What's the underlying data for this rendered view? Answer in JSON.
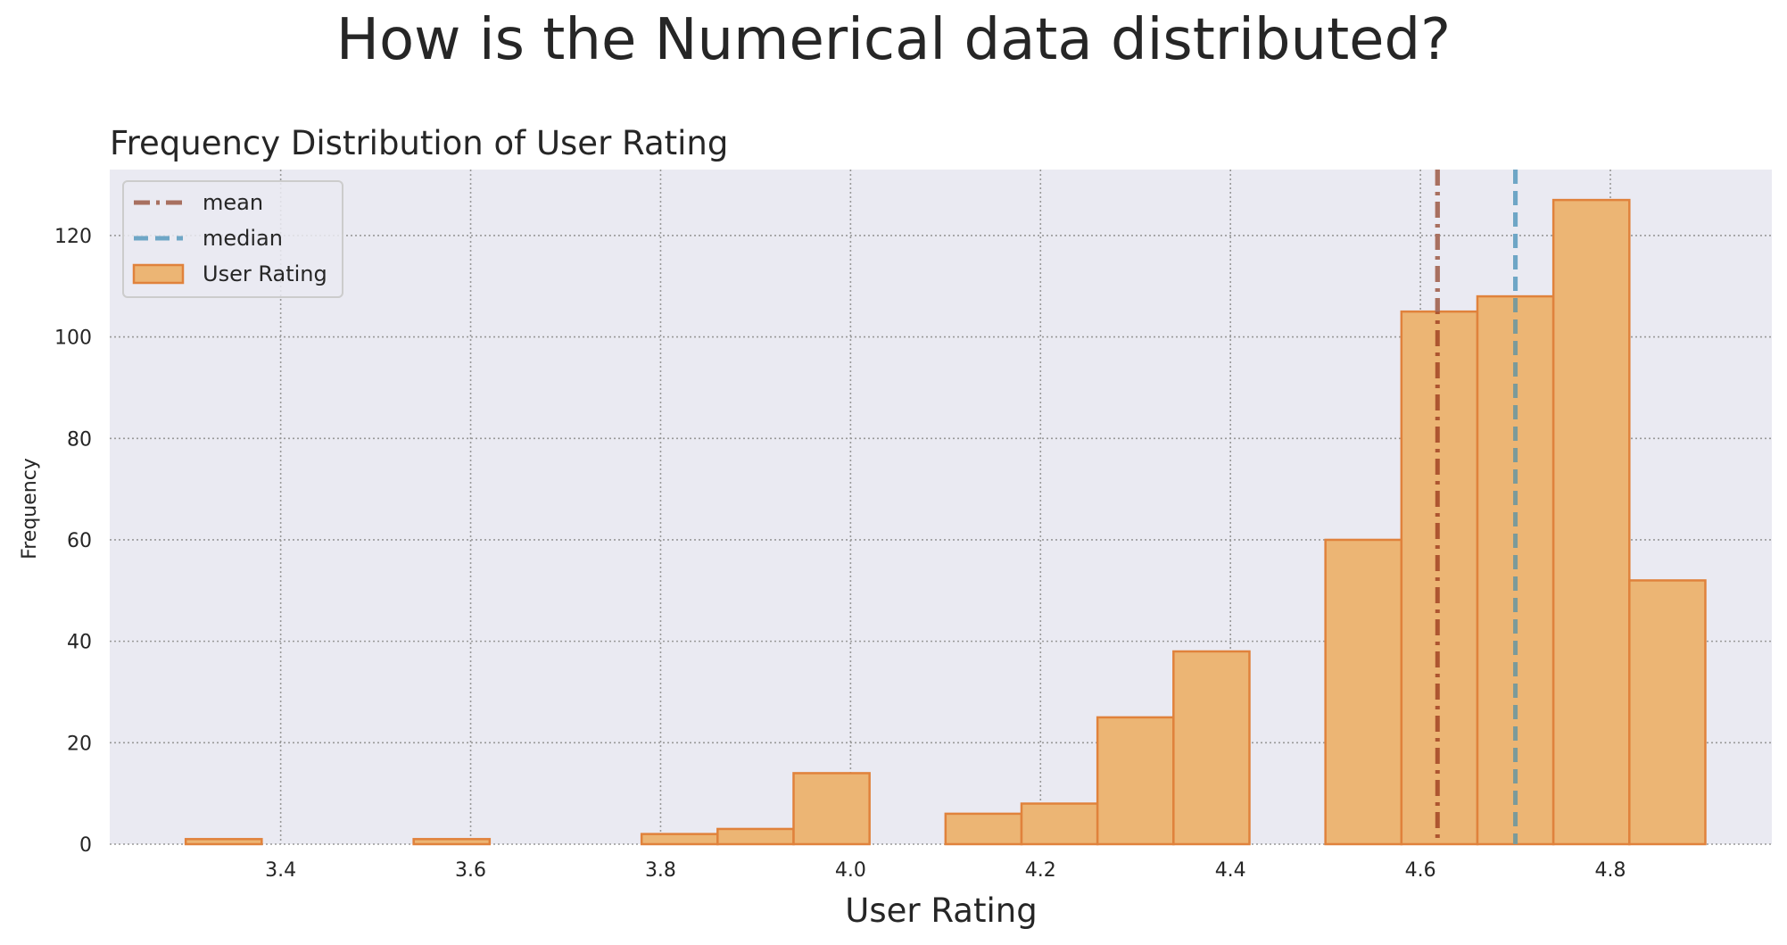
{
  "page": {
    "suptitle": "How is the Numerical data distributed?"
  },
  "chart_data": {
    "type": "bar",
    "title": "Frequency Distribution of User Rating",
    "xlabel": "User Rating",
    "ylabel": "Frequency",
    "xlim": [
      3.22,
      4.97
    ],
    "ylim": [
      0,
      133
    ],
    "x_ticks": [
      "3.4",
      "3.6",
      "3.8",
      "4.0",
      "4.2",
      "4.4",
      "4.6",
      "4.8"
    ],
    "y_ticks": [
      "0",
      "20",
      "40",
      "60",
      "80",
      "100",
      "120"
    ],
    "grid": true,
    "legend_position": "top-left",
    "bin_width": 0.08,
    "bins": [
      {
        "start": 3.3,
        "count": 1
      },
      {
        "start": 3.38,
        "count": 0
      },
      {
        "start": 3.46,
        "count": 0
      },
      {
        "start": 3.54,
        "count": 1
      },
      {
        "start": 3.62,
        "count": 0
      },
      {
        "start": 3.7,
        "count": 0
      },
      {
        "start": 3.78,
        "count": 2
      },
      {
        "start": 3.86,
        "count": 3
      },
      {
        "start": 3.94,
        "count": 14
      },
      {
        "start": 4.02,
        "count": 0
      },
      {
        "start": 4.1,
        "count": 6
      },
      {
        "start": 4.18,
        "count": 8
      },
      {
        "start": 4.26,
        "count": 25
      },
      {
        "start": 4.34,
        "count": 38
      },
      {
        "start": 4.42,
        "count": 0
      },
      {
        "start": 4.5,
        "count": 60
      },
      {
        "start": 4.58,
        "count": 105
      },
      {
        "start": 4.66,
        "count": 108
      },
      {
        "start": 4.74,
        "count": 127
      },
      {
        "start": 4.82,
        "count": 52
      }
    ],
    "mean": 4.618,
    "median": 4.7,
    "series": [
      {
        "name": "mean",
        "kind": "vline",
        "color": "#a87060",
        "style": "dashdot"
      },
      {
        "name": "median",
        "kind": "vline",
        "color": "#6ea6c6",
        "style": "dashed"
      },
      {
        "name": "User Rating",
        "kind": "hist",
        "color": "#ecb574",
        "edge_color": "#e0823c"
      }
    ],
    "colors": {
      "axes_bg": "#eaeaf2",
      "grid": "#999999",
      "mean_line_over_bars": "#ad5530",
      "median_line_over_bars": "#7b9a9a"
    }
  }
}
